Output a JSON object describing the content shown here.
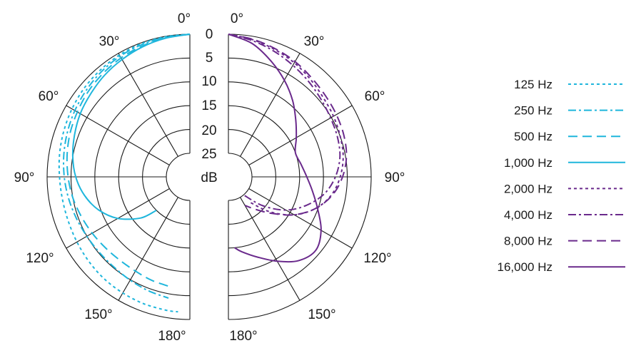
{
  "chart_data": {
    "type": "polar",
    "grid": true,
    "legend_position": "right",
    "angle_labels": [
      "0°",
      "30°",
      "60°",
      "90°",
      "120°",
      "150°",
      "180°"
    ],
    "angles": [
      0,
      30,
      60,
      90,
      120,
      150,
      180
    ],
    "db_labels": [
      "0",
      "5",
      "10",
      "15",
      "20",
      "25"
    ],
    "db_unit": "dB",
    "radial_range_db": [
      -25,
      0
    ],
    "colors": {
      "cyan": "#1fb6dc",
      "purple": "#6a2a8c",
      "grid": "#1a1a1a"
    },
    "series": [
      {
        "name": "125 Hz",
        "side": "left",
        "color": "#1fb6dc",
        "dash": "4,4",
        "angles": [
          0,
          10,
          20,
          30,
          40,
          50,
          60,
          70,
          80,
          90,
          100,
          110,
          120,
          130,
          140,
          150,
          160,
          170,
          175
        ],
        "attenuation_db": [
          0,
          0.1,
          0.2,
          0.4,
          0.7,
          1.0,
          1.4,
          1.8,
          2.2,
          2.6,
          2.8,
          2.8,
          2.6,
          2.3,
          2.0,
          1.8,
          1.6,
          1.5,
          1.5
        ]
      },
      {
        "name": "250 Hz",
        "side": "left",
        "color": "#1fb6dc",
        "dash": "11,4,3,4",
        "angles": [
          0,
          10,
          20,
          30,
          40,
          50,
          60,
          70,
          80,
          90,
          100,
          110,
          120,
          130,
          140,
          150,
          160,
          170
        ],
        "attenuation_db": [
          0,
          0.2,
          0.4,
          0.7,
          1.1,
          1.6,
          2.1,
          2.6,
          3.1,
          3.6,
          4.1,
          4.6,
          5.0,
          5.2,
          5.2,
          4.9,
          4.5,
          4.1
        ]
      },
      {
        "name": "500 Hz",
        "side": "left",
        "color": "#1fb6dc",
        "dash": "13,7",
        "angles": [
          0,
          10,
          20,
          30,
          40,
          50,
          60,
          70,
          80,
          90,
          100,
          110,
          120,
          130,
          140,
          150,
          160,
          170
        ],
        "attenuation_db": [
          0,
          0.3,
          0.7,
          1.1,
          1.6,
          2.1,
          2.7,
          3.2,
          3.8,
          4.4,
          5.0,
          5.7,
          6.3,
          6.8,
          7.1,
          7.1,
          6.8,
          6.5
        ]
      },
      {
        "name": "1,000 Hz",
        "side": "left",
        "color": "#1fb6dc",
        "dash": "",
        "angles": [
          0,
          10,
          20,
          30,
          40,
          50,
          60,
          70,
          80,
          90,
          100,
          110,
          120,
          130,
          135
        ],
        "attenuation_db": [
          0,
          0.4,
          0.9,
          1.5,
          2.1,
          2.8,
          3.4,
          4.2,
          5.0,
          6.0,
          7.5,
          9.6,
          12.5,
          16.5,
          20.0
        ]
      },
      {
        "name": "2,000 Hz",
        "side": "right",
        "color": "#6a2a8c",
        "dash": "4,4",
        "angles": [
          0,
          10,
          20,
          30,
          40,
          50,
          60,
          70,
          80,
          90,
          100,
          110,
          120,
          130,
          140
        ],
        "attenuation_db": [
          0,
          0.7,
          1.5,
          2.3,
          3.2,
          4.0,
          4.5,
          5.0,
          5.5,
          6.5,
          8.0,
          10.5,
          14.0,
          18.5,
          23.0
        ]
      },
      {
        "name": "4,000 Hz",
        "side": "right",
        "color": "#6a2a8c",
        "dash": "11,4,3,4",
        "angles": [
          0,
          10,
          20,
          30,
          40,
          50,
          60,
          70,
          80,
          90,
          100,
          110,
          120,
          130,
          140
        ],
        "attenuation_db": [
          0,
          0.9,
          1.9,
          2.9,
          3.8,
          4.6,
          5.2,
          5.6,
          6.2,
          7.5,
          9.5,
          12.5,
          16.0,
          20.5,
          25.0
        ]
      },
      {
        "name": "8,000 Hz",
        "side": "right",
        "color": "#6a2a8c",
        "dash": "13,7",
        "angles": [
          0,
          10,
          20,
          30,
          40,
          50,
          60,
          70,
          80,
          90,
          100,
          110,
          120,
          130,
          140,
          150
        ],
        "attenuation_db": [
          0,
          0.6,
          1.3,
          2.0,
          2.8,
          3.4,
          3.8,
          4.2,
          4.8,
          6.0,
          7.8,
          10.5,
          14.0,
          18.0,
          21.0,
          23.0
        ]
      },
      {
        "name": "16,000 Hz",
        "side": "right",
        "color": "#6a2a8c",
        "dash": "",
        "angles": [
          0,
          10,
          20,
          30,
          40,
          50,
          60,
          70,
          80,
          90,
          100,
          110,
          120,
          130,
          140,
          150,
          160,
          170,
          175
        ],
        "attenuation_db": [
          0,
          1.5,
          4.0,
          6.5,
          9.0,
          11.5,
          13.5,
          15.0,
          14.5,
          13.5,
          12.0,
          10.0,
          7.5,
          6.0,
          7.0,
          9.5,
          12.0,
          14.0,
          15.0
        ]
      }
    ]
  }
}
